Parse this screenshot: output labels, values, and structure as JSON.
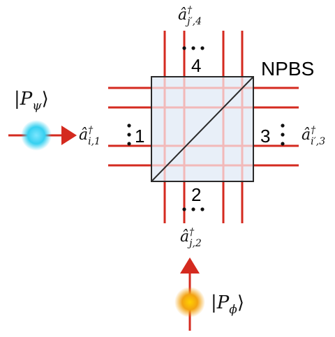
{
  "components": {
    "splitter": {
      "label": "NPBS",
      "fill": "#e4ecf7",
      "outline": "#2a2a2a"
    },
    "ports": [
      {
        "id": "1",
        "label": "1",
        "operator_base": "â",
        "operator_sup": "†",
        "operator_sub": "i,1"
      },
      {
        "id": "2",
        "label": "2",
        "operator_base": "â",
        "operator_sup": "†",
        "operator_sub": "j,2"
      },
      {
        "id": "3",
        "label": "3",
        "operator_base": "â",
        "operator_sup": "†",
        "operator_sub": "i′,3"
      },
      {
        "id": "4",
        "label": "4",
        "operator_base": "â",
        "operator_sup": "†",
        "operator_sub": "j′,4"
      }
    ],
    "inputs": [
      {
        "id": "psi",
        "ket_open": "|",
        "symbol": "P",
        "subscript": "ψ",
        "ket_close": "⟩",
        "color": "#36d0f0"
      },
      {
        "id": "phi",
        "ket_open": "|",
        "symbol": "P",
        "subscript": "ϕ",
        "ket_close": "⟩",
        "color": "#f3a312"
      }
    ]
  },
  "colors": {
    "mode_line": "#d42a1f",
    "inner_line": "#f2b9b9",
    "arrow": "#d42a1f"
  }
}
